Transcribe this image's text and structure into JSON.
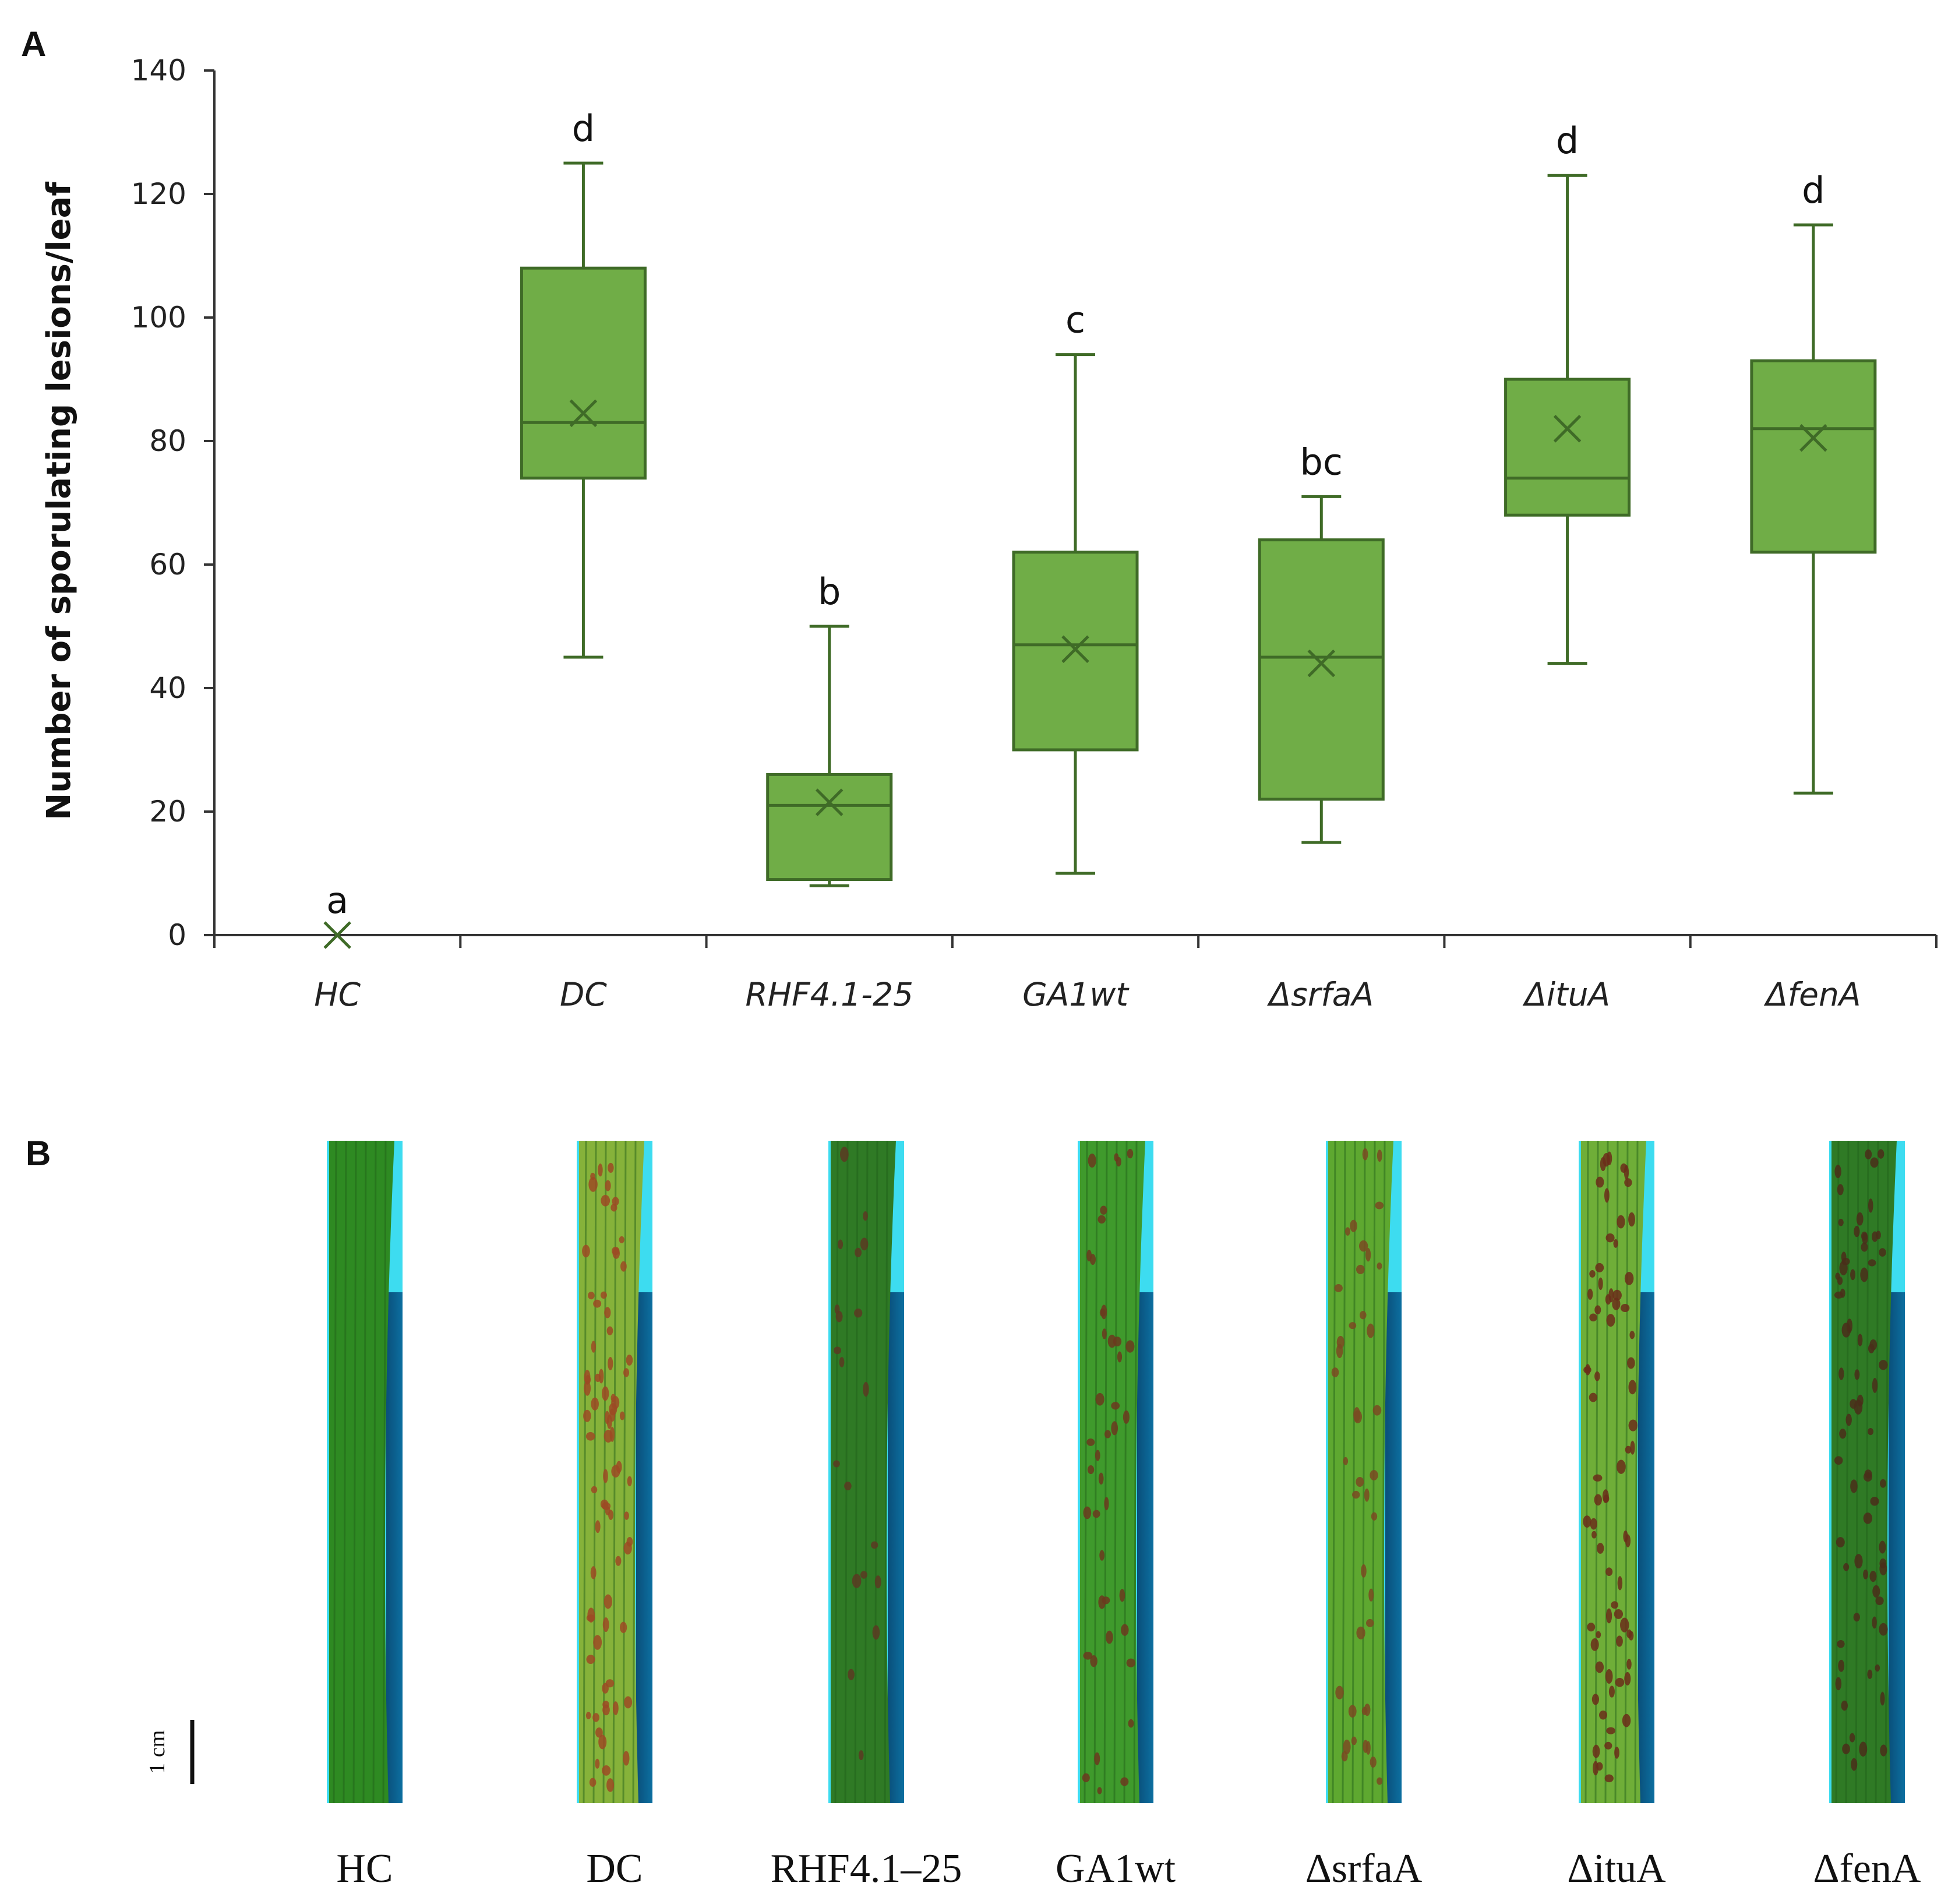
{
  "panels": {
    "a": "A",
    "b": "B"
  },
  "chart_data": {
    "type": "box",
    "ylabel": "Number of sporulating lesions/leaf",
    "xlabel": "",
    "ylim": [
      0,
      140
    ],
    "yticks": [
      0,
      20,
      40,
      60,
      80,
      100,
      120,
      140
    ],
    "grid": false,
    "colors": {
      "fill": "#70ad47",
      "stroke": "#3f6b27",
      "axis": "#333333"
    },
    "categories": [
      "HC",
      "DC",
      "RHF4.1-25",
      "GA1wt",
      "ΔsrfaA",
      "ΔituA",
      "ΔfenA"
    ],
    "boxes": [
      {
        "name": "HC",
        "min": 0,
        "q1": 0,
        "median": 0,
        "q3": 0,
        "max": 0,
        "mean": 0,
        "significance": "a"
      },
      {
        "name": "DC",
        "min": 45,
        "q1": 74,
        "median": 83,
        "q3": 108,
        "max": 125,
        "mean": 84.5,
        "significance": "d"
      },
      {
        "name": "RHF4.1-25",
        "min": 8,
        "q1": 9,
        "median": 21,
        "q3": 26,
        "max": 50,
        "mean": 21.5,
        "significance": "b"
      },
      {
        "name": "GA1wt",
        "min": 10,
        "q1": 30,
        "median": 47,
        "q3": 62,
        "max": 94,
        "mean": 46.3,
        "significance": "c"
      },
      {
        "name": "ΔsrfaA",
        "min": 15,
        "q1": 22,
        "median": 45,
        "q3": 64,
        "max": 71,
        "mean": 44,
        "significance": "bc"
      },
      {
        "name": "ΔituA",
        "min": 44,
        "q1": 68,
        "median": 74,
        "q3": 90,
        "max": 123,
        "mean": 82,
        "significance": "d"
      },
      {
        "name": "ΔfenA",
        "min": 23,
        "q1": 62,
        "median": 82,
        "q3": 93,
        "max": 115,
        "mean": 80.5,
        "significance": "d"
      }
    ]
  },
  "leaves": {
    "scale_label": "1 cm",
    "items": [
      {
        "label": "HC",
        "lesions": 0,
        "background": "#3ddcf0",
        "tissue": "#2e8a22",
        "lesion_color": "#6b3a1e"
      },
      {
        "label": "DC",
        "lesions": 85,
        "background": "#3ddcf0",
        "tissue": "#86b23a",
        "lesion_color": "#9c4a24"
      },
      {
        "label": "RHF4.1–25",
        "lesions": 22,
        "background": "#3ddcf0",
        "tissue": "#2f7a25",
        "lesion_color": "#5a3a22"
      },
      {
        "label": "GA1wt",
        "lesions": 46,
        "background": "#3ddcf0",
        "tissue": "#3f9a2c",
        "lesion_color": "#6b3a1e"
      },
      {
        "label": "ΔsrfaA",
        "lesions": 44,
        "background": "#3ddcf0",
        "tissue": "#5ea830",
        "lesion_color": "#7a4a22"
      },
      {
        "label": "ΔituA",
        "lesions": 82,
        "background": "#3ddcf0",
        "tissue": "#6fae38",
        "lesion_color": "#6b2e1a"
      },
      {
        "label": "ΔfenA",
        "lesions": 80,
        "background": "#3ddcf0",
        "tissue": "#2f7a25",
        "lesion_color": "#4a2e1a"
      }
    ]
  }
}
